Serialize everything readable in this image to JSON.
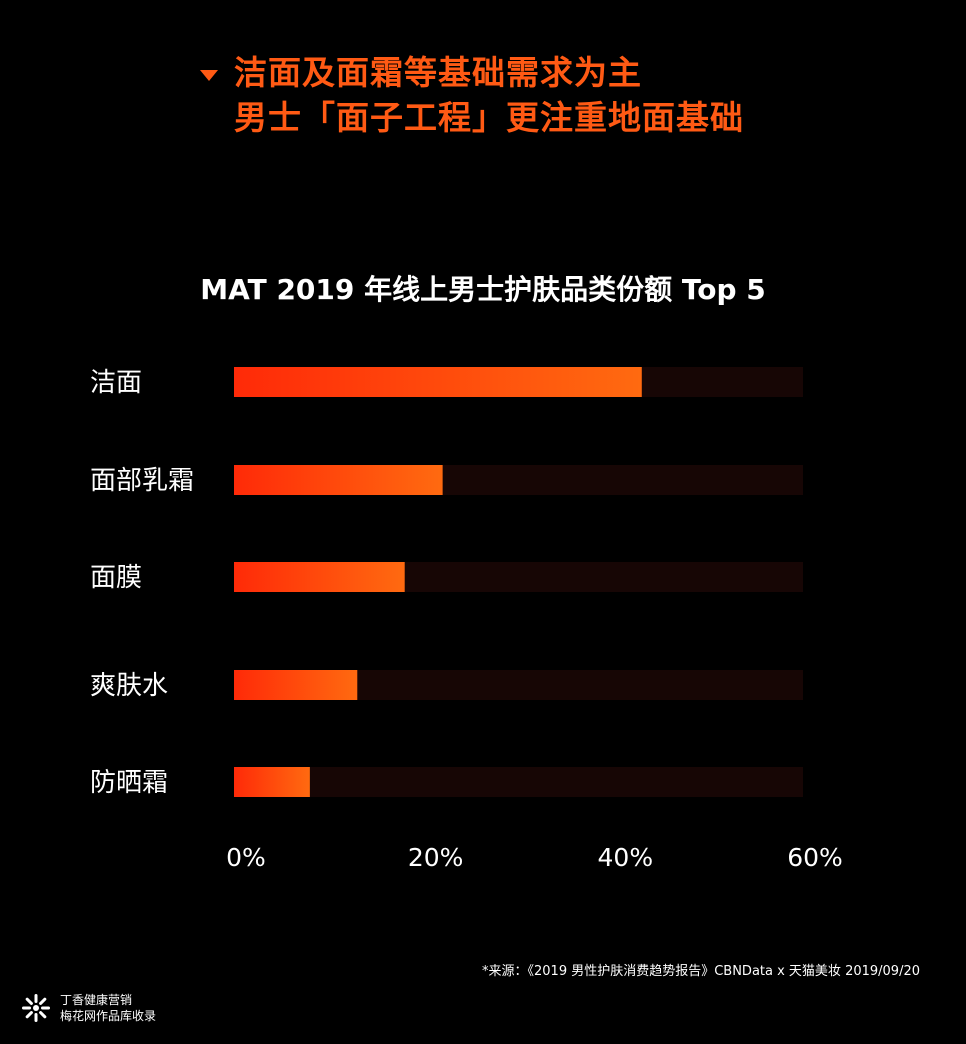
{
  "headline": {
    "line1": "洁面及面霜等基础需求为主",
    "line2": "男士「面子工程」更注重地面基础"
  },
  "chart_data": {
    "type": "bar",
    "orientation": "horizontal",
    "title": "MAT 2019 年线上男士护肤品类份额 Top 5",
    "categories": [
      "洁面",
      "面部乳霜",
      "面膜",
      "爽肤水",
      "防晒霜"
    ],
    "values": [
      43,
      22,
      18,
      13,
      8
    ],
    "xlim": [
      0,
      60
    ],
    "xticks": [
      "0%",
      "20%",
      "40%",
      "60%"
    ],
    "grid": false,
    "legend": "none",
    "colors": {
      "bar_start": "#ff2a08",
      "bar_end": "#ff6a10",
      "track": "#170605"
    }
  },
  "footer": {
    "source": "*来源：《2019 男性护肤消费趋势报告》CBNData x 天猫美妆 2019/09/20",
    "brand_line1": "丁香健康营销",
    "brand_line2": "梅花网作品库收录"
  },
  "colors": {
    "accent": "#ff5a14",
    "background": "#000000",
    "text": "#ffffff"
  },
  "icons": {
    "headline_marker": "triangle-down-icon",
    "brand_logo": "clove-flower-logo"
  }
}
